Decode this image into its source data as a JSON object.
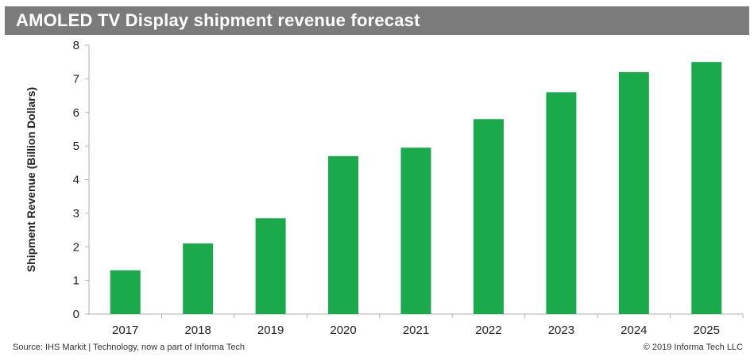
{
  "chart_data": {
    "type": "bar",
    "title": "AMOLED TV Display shipment revenue forecast",
    "xlabel": "",
    "ylabel": "Shipment Revenue (Billion Dollars)",
    "categories": [
      "2017",
      "2018",
      "2019",
      "2020",
      "2021",
      "2022",
      "2023",
      "2024",
      "2025"
    ],
    "values": [
      1.3,
      2.1,
      2.85,
      4.7,
      4.95,
      5.8,
      6.6,
      7.2,
      7.5
    ],
    "ylim": [
      0,
      8
    ],
    "yticks": [
      0,
      1,
      2,
      3,
      4,
      5,
      6,
      7,
      8
    ],
    "grid": false,
    "bar_color": "#1aaa4b"
  },
  "footer": {
    "source": "Source: IHS Markit | Technology, now a part of Informa Tech",
    "copyright": "© 2019 Informa Tech LLC"
  },
  "colors": {
    "title_bar": "#7b7b7b",
    "bar": "#1aaa4b",
    "axis": "#b0b0b0"
  }
}
